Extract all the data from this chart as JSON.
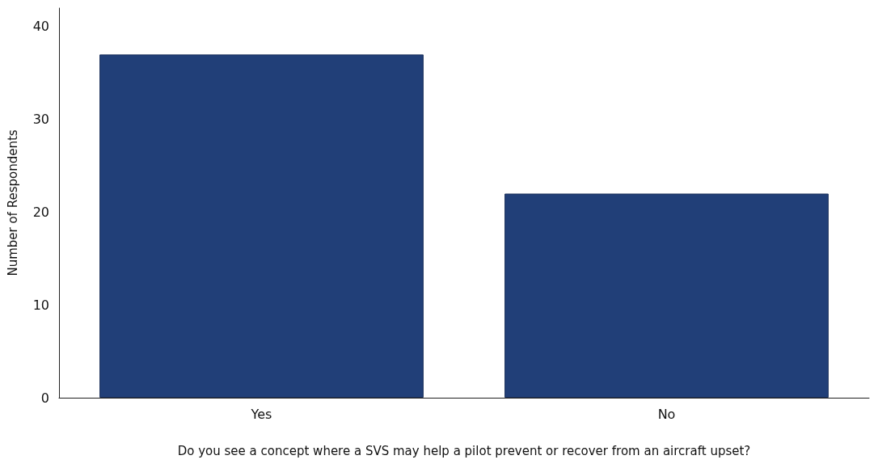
{
  "chart_data": {
    "type": "bar",
    "xlabel": "Do you see a concept where a SVS may help a pilot prevent or recover from an aircraft upset?",
    "ylabel": "Number of Respondents",
    "categories": [
      "Yes",
      "No"
    ],
    "values": [
      37,
      22
    ],
    "color": "#213f78",
    "ylim": [
      0,
      42
    ],
    "yticks": [
      0,
      10,
      20,
      30,
      40
    ]
  }
}
